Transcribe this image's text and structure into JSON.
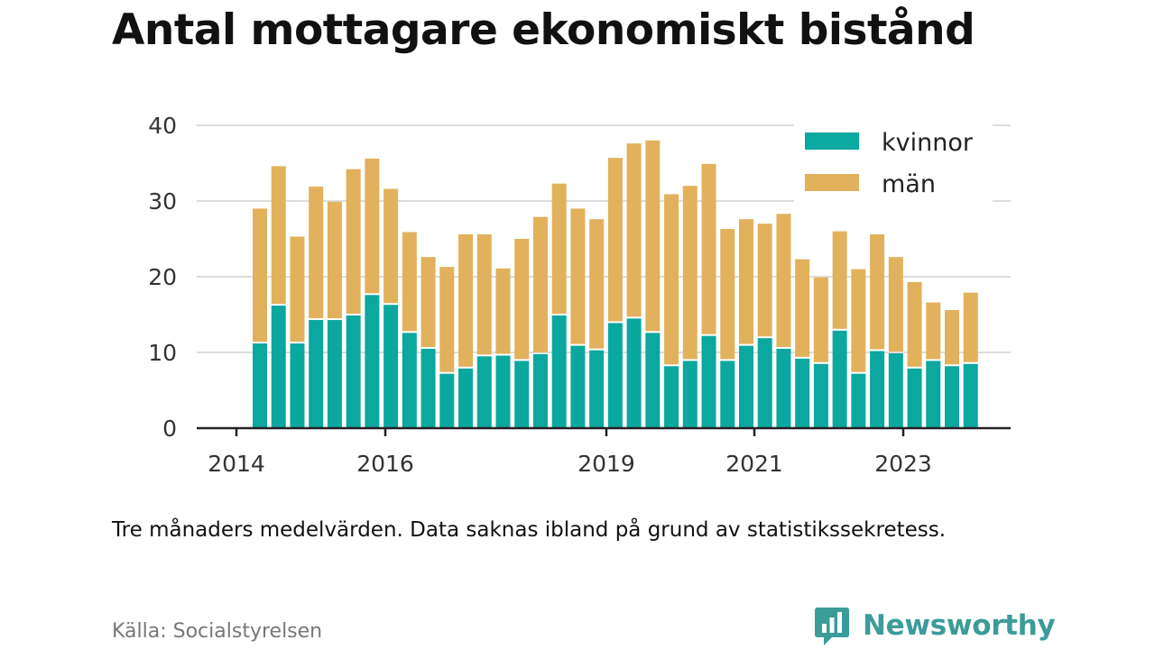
{
  "title": "Antal mottagare ekonomiskt bistånd",
  "note": "Tre månaders medelvärden. Data saknas ibland på grund av statistikssekretess.",
  "source": "Källa: Socialstyrelsen",
  "brand": "Newsworthy",
  "colors": {
    "kvinnor": "#0aa89e",
    "man": "#e2b15c",
    "axis": "#222222",
    "grid": "#dddddd",
    "brand": "#3b9c9a"
  },
  "chart_data": {
    "type": "bar",
    "stacked": true,
    "x_tick_labels": [
      "2014",
      "2016",
      "2019",
      "2021",
      "2023"
    ],
    "y_ticks": [
      0,
      10,
      20,
      30,
      40
    ],
    "ylim": [
      0,
      40
    ],
    "grid": true,
    "legend_position": "top-right",
    "series": [
      {
        "name": "kvinnor",
        "values": [
          11.3,
          16.3,
          11.3,
          14.4,
          14.4,
          15.0,
          17.7,
          16.4,
          12.7,
          10.6,
          7.3,
          8.0,
          9.6,
          9.7,
          9.0,
          9.9,
          15.0,
          11.0,
          10.4,
          14.0,
          14.6,
          12.7,
          8.3,
          9.0,
          12.3,
          9.0,
          11.0,
          12.0,
          10.6,
          9.3,
          8.6,
          13.0,
          7.3,
          10.3,
          10.0,
          8.0,
          9.0,
          8.3,
          8.6
        ]
      },
      {
        "name": "män",
        "values": [
          17.7,
          18.3,
          14.0,
          17.5,
          15.5,
          19.2,
          17.9,
          15.2,
          13.2,
          12.0,
          14.0,
          17.6,
          16.0,
          11.4,
          16.0,
          18.0,
          17.3,
          18.0,
          17.2,
          21.7,
          23.0,
          25.3,
          22.6,
          23.0,
          22.6,
          17.3,
          16.6,
          15.0,
          17.7,
          13.0,
          11.3,
          13.0,
          13.7,
          15.3,
          12.6,
          11.3,
          7.6,
          7.3,
          9.3
        ]
      }
    ]
  }
}
